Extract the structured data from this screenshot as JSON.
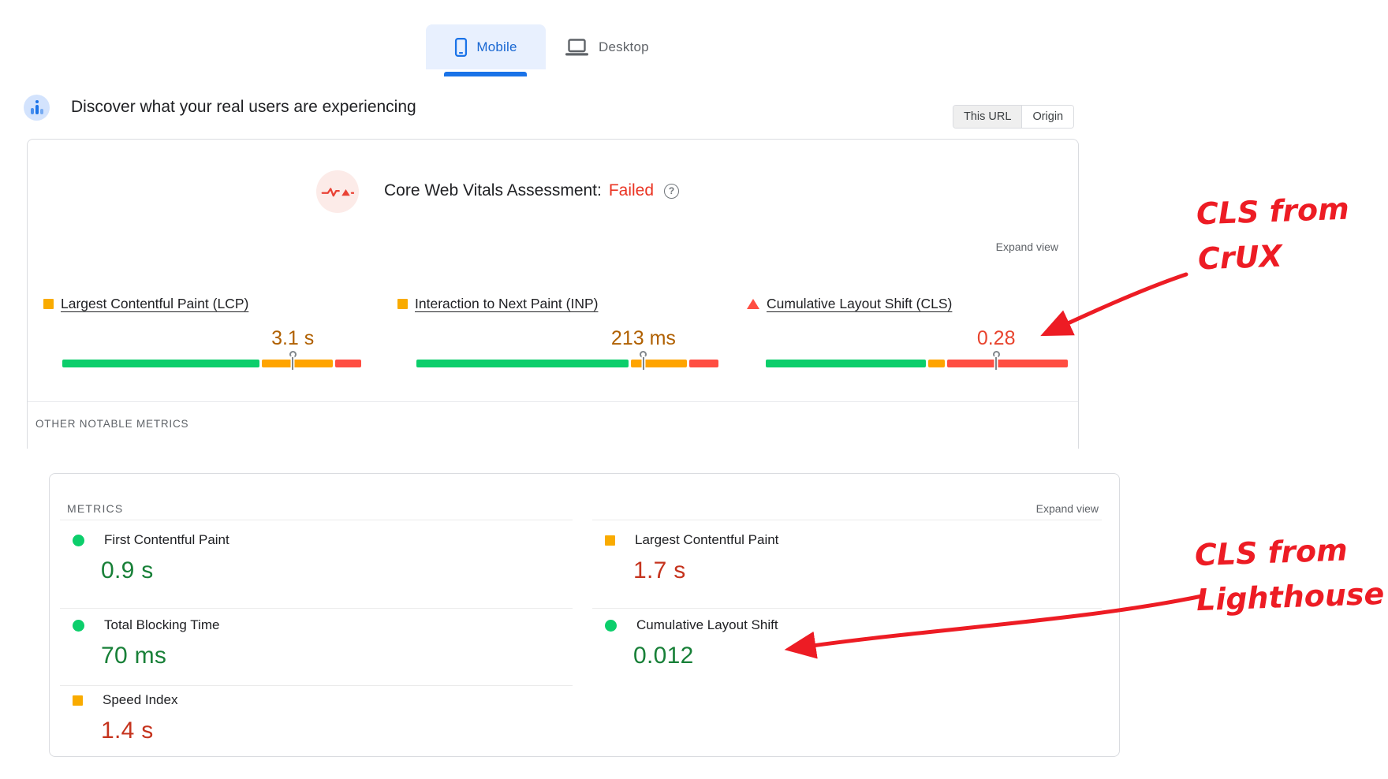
{
  "tabs": {
    "mobile": "Mobile",
    "desktop": "Desktop"
  },
  "discover": {
    "title": "Discover what your real users are experiencing"
  },
  "scope_toggle": {
    "this_url": "This URL",
    "origin": "Origin",
    "selected": "This URL"
  },
  "field_section": {
    "assessment_prefix": "Core Web Vitals Assessment:",
    "assessment_status": "Failed",
    "help_glyph": "?",
    "expand_view": "Expand view",
    "metrics": [
      {
        "label": "Largest Contentful Paint (LCP)",
        "value": "3.1 s",
        "status": "average",
        "icon": "square",
        "distribution": {
          "good": 65,
          "average": 24,
          "poor": 9
        },
        "marker_pos": 75.5
      },
      {
        "label": "Interaction to Next Paint (INP)",
        "value": "213 ms",
        "status": "average",
        "icon": "square",
        "distribution": {
          "good": 70,
          "average": 19,
          "poor": 10
        },
        "marker_pos": 74.4
      },
      {
        "label": "Cumulative Layout Shift (CLS)",
        "value": "0.28",
        "status": "poor",
        "icon": "triangle",
        "distribution": {
          "good": 53,
          "average": 6,
          "poor": 40
        },
        "marker_pos": 75.5
      }
    ],
    "other_notable": "OTHER NOTABLE METRICS"
  },
  "lab_section": {
    "header": "METRICS",
    "expand_view": "Expand view",
    "left": [
      {
        "label": "First Contentful Paint",
        "value": "0.9 s",
        "status": "good",
        "icon": "dot"
      },
      {
        "label": "Total Blocking Time",
        "value": "70 ms",
        "status": "good",
        "icon": "dot"
      },
      {
        "label": "Speed Index",
        "value": "1.4 s",
        "status": "average",
        "icon": "square"
      }
    ],
    "right": [
      {
        "label": "Largest Contentful Paint",
        "value": "1.7 s",
        "status": "average",
        "icon": "square"
      },
      {
        "label": "Cumulative Layout Shift",
        "value": "0.012",
        "status": "good",
        "icon": "dot"
      }
    ]
  },
  "annotations": {
    "crux_line1": "CLS from",
    "crux_line2": "CrUX",
    "lighthouse_line1": "CLS from",
    "lighthouse_line2": "Lighthouse"
  },
  "colors": {
    "accent_blue": "#1a73e8",
    "tab_label_blue": "#1967d2",
    "bar": {
      "good": "#0cce6b",
      "average": "#ffa400",
      "poor": "#ff4e42"
    },
    "icon": {
      "dot": "#0cce6b",
      "square": "#f9ab00",
      "triangle": "#ff4e42"
    },
    "value": {
      "average": "#b06000",
      "poor": "#e8442e"
    },
    "lab_value": {
      "good": "#188038",
      "average": "#c5331d"
    },
    "failed_red": "#ea3423",
    "annotation_red": "#ed1c24"
  }
}
